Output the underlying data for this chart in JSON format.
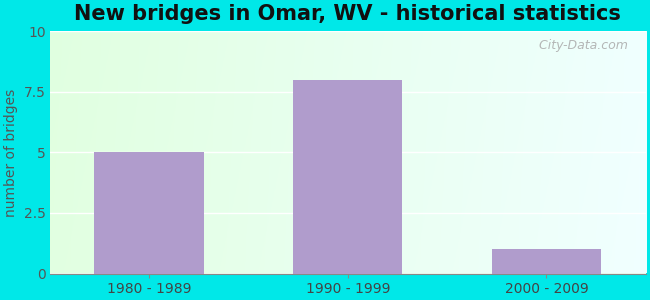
{
  "title": "New bridges in Omar, WV - historical statistics",
  "categories": [
    "1980 - 1989",
    "1990 - 1999",
    "2000 - 2009"
  ],
  "values": [
    5,
    8,
    1
  ],
  "bar_color": "#b09ccc",
  "ylabel": "number of bridges",
  "ylim": [
    0,
    10
  ],
  "yticks": [
    0,
    2.5,
    5,
    7.5,
    10
  ],
  "outer_bg": "#00e8e8",
  "watermark": "  City-Data.com",
  "title_fontsize": 15,
  "tick_fontsize": 10,
  "ylabel_fontsize": 10,
  "bar_width": 0.55
}
